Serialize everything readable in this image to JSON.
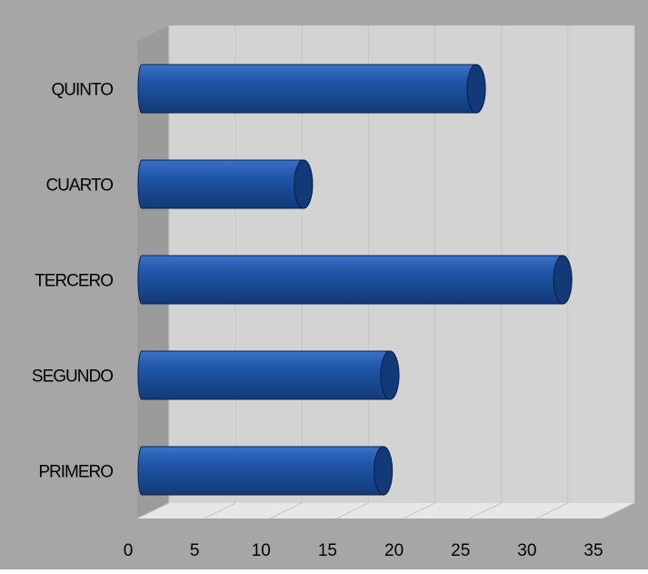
{
  "chart_data": {
    "type": "bar",
    "orientation": "horizontal",
    "style": "3d-cylinder",
    "categories": [
      "PRIMERO",
      "SEGUNDO",
      "TERCERO",
      "CUARTO",
      "QUINTO"
    ],
    "values": [
      18.5,
      19,
      32,
      12.5,
      25.5
    ],
    "xlim": [
      0,
      35
    ],
    "xticks": [
      0,
      5,
      10,
      15,
      20,
      25,
      30,
      35
    ],
    "title": "",
    "xlabel": "",
    "ylabel": "",
    "grid": true,
    "legend": "none"
  },
  "colors": {
    "outer_background": "#a6a6a6",
    "plot_wall": "#d3d3d3",
    "side_wall": "#9b9b9b",
    "floor": "#e7e7e7",
    "bar_body": "#1f56a8",
    "bar_highlight": "#3a72c6",
    "bar_shadow": "#123a78",
    "bar_edge": "#0a2450",
    "gridline": "#c6c6c6",
    "text": "#000000"
  }
}
